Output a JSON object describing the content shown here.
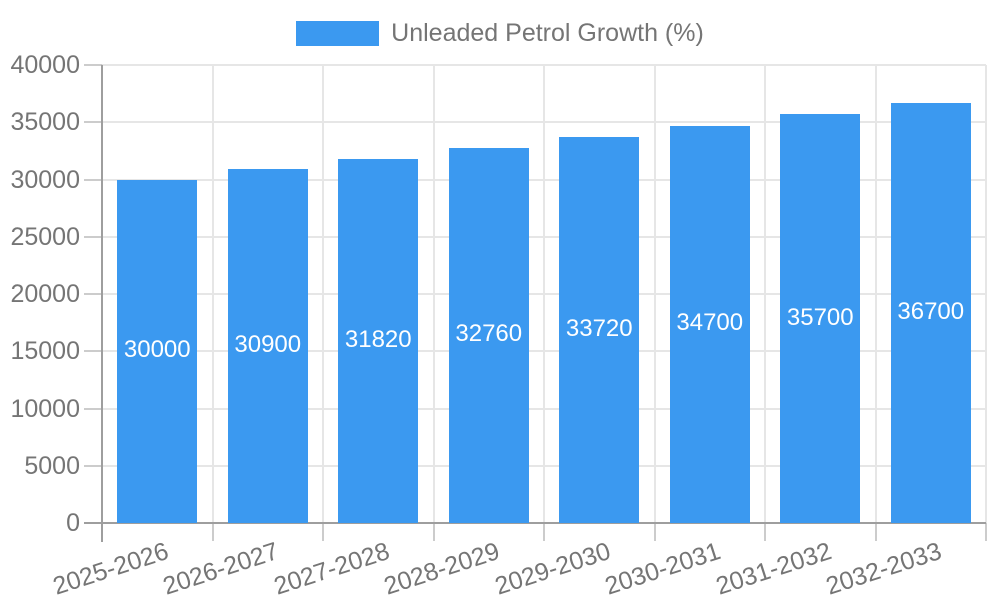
{
  "chart_data": {
    "type": "bar",
    "title": "",
    "series_name": "Unleaded Petrol Growth (%)",
    "categories": [
      "2025-2026",
      "2026-2027",
      "2027-2028",
      "2028-2029",
      "2029-2030",
      "2030-2031",
      "2031-2032",
      "2032-2033"
    ],
    "values": [
      30000,
      30900,
      31820,
      32760,
      33720,
      34700,
      35700,
      36700
    ],
    "bar_labels": [
      "30000",
      "30900",
      "31820",
      "32760",
      "33720",
      "34700",
      "35700",
      "36700"
    ],
    "xlabel": "",
    "ylabel": "",
    "ylim": [
      0,
      40000
    ],
    "yticks": [
      0,
      5000,
      10000,
      15000,
      20000,
      25000,
      30000,
      35000,
      40000
    ],
    "grid": true,
    "legend_position": "top",
    "colors": {
      "bar": "#3b99f0",
      "bar_label_text": "#ffffff",
      "axis_text": "#757575",
      "gridline": "#e6e6e6",
      "axis_line": "#9e9e9e",
      "tick_mark": "#cccccc",
      "background": "#ffffff"
    }
  }
}
